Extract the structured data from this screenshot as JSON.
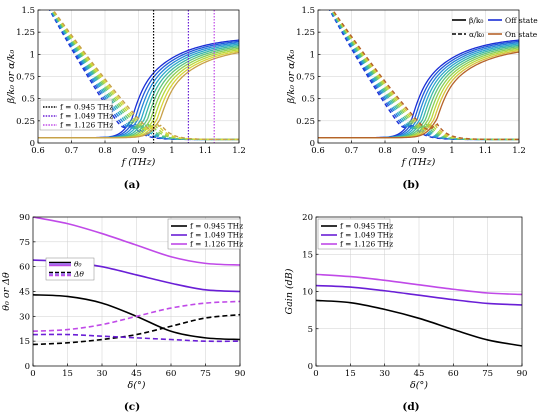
{
  "chart_data": [
    {
      "id": "a",
      "type": "line",
      "caption": "(a)",
      "xlabel": "f (THz)",
      "ylabel": "β/k₀ or α/k₀",
      "xlim": [
        0.6,
        1.2
      ],
      "ylim": [
        0,
        1.5
      ],
      "xticks": [
        "0.6",
        "0.7",
        "0.8",
        "0.9",
        "1",
        "1.1",
        "1.2"
      ],
      "yticks": [
        "0",
        "0.25",
        "0.5",
        "0.75",
        "1",
        "1.25",
        "1.5"
      ],
      "grid": true,
      "legend": {
        "position": "bottom-left",
        "entries": [
          {
            "label": "f = 0.945 THz",
            "color": "#000000"
          },
          {
            "label": "f = 1.049 THz",
            "color": "#6a1fd6"
          },
          {
            "label": "f = 1.126 THz",
            "color": "#c04ae8"
          }
        ]
      },
      "vlines": [
        0.945,
        1.049,
        1.126
      ],
      "family": {
        "count": 10,
        "beta_start": 0.88,
        "beta_end": 0.965,
        "colors": [
          "#1a2ed6",
          "#1f5ad9",
          "#2786d8",
          "#2ea8c9",
          "#3ab8a6",
          "#5fc47c",
          "#8ccf55",
          "#b7d83c",
          "#d8d43a",
          "#c8a04a"
        ]
      }
    },
    {
      "id": "b",
      "type": "line",
      "caption": "(b)",
      "xlabel": "f (THz)",
      "ylabel": "β/k₀ or α/k₀",
      "xlim": [
        0.6,
        1.2
      ],
      "ylim": [
        0,
        1.5
      ],
      "xticks": [
        "0.6",
        "0.7",
        "0.8",
        "0.9",
        "1",
        "1.1",
        "1.2"
      ],
      "yticks": [
        "0",
        "0.25",
        "0.5",
        "0.75",
        "1",
        "1.25",
        "1.5"
      ],
      "grid": true,
      "legend": {
        "position": "top-right",
        "entries": [
          {
            "label": "β/k₀",
            "style": "solid",
            "color": "#000000"
          },
          {
            "label": "α/k₀",
            "style": "dashed",
            "color": "#000000"
          },
          {
            "label": "Off state",
            "style": "solid",
            "color": "#1a2ed6"
          },
          {
            "label": "On state",
            "style": "solid",
            "color": "#b5622a"
          }
        ]
      },
      "family": {
        "count": 10,
        "beta_start": 0.88,
        "beta_end": 0.955,
        "colors": [
          "#1a2ed6",
          "#1f5ad9",
          "#2786d8",
          "#2ea8c9",
          "#3ab8a6",
          "#5fc47c",
          "#8ccf55",
          "#b7d83c",
          "#d8c03a",
          "#b5622a"
        ]
      }
    },
    {
      "id": "c",
      "type": "line",
      "caption": "(c)",
      "xlabel": "δ(°)",
      "ylabel": "θ₀ or Δθ",
      "xlim": [
        0,
        90
      ],
      "ylim": [
        0,
        90
      ],
      "xticks": [
        "0",
        "15",
        "30",
        "45",
        "60",
        "75",
        "90"
      ],
      "yticks": [
        "0",
        "15",
        "30",
        "45",
        "60",
        "75",
        "90"
      ],
      "grid": true,
      "legend": {
        "position": "top-right",
        "entries": [
          {
            "label": "f = 0.945 THz",
            "color": "#000000"
          },
          {
            "label": "f = 1.049 THz",
            "color": "#6a1fd6"
          },
          {
            "label": "f = 1.126 THz",
            "color": "#c04ae8"
          }
        ]
      },
      "legend2": {
        "position": "upper-left",
        "entries": [
          {
            "label": "θ₀",
            "style": "solid"
          },
          {
            "label": "Δθ",
            "style": "dashed"
          }
        ]
      },
      "series": [
        {
          "name": "f = 0.945 THz",
          "quantity": "θ₀",
          "color": "#000000",
          "style": "solid",
          "x": [
            0,
            15,
            30,
            45,
            60,
            75,
            90
          ],
          "y": [
            43,
            42,
            38,
            30,
            21,
            17,
            16
          ]
        },
        {
          "name": "f = 1.049 THz",
          "quantity": "θ₀",
          "color": "#6a1fd6",
          "style": "solid",
          "x": [
            0,
            15,
            30,
            45,
            60,
            75,
            90
          ],
          "y": [
            64,
            63,
            60,
            55,
            50,
            46,
            45
          ]
        },
        {
          "name": "f = 1.126 THz",
          "quantity": "θ₀",
          "color": "#c04ae8",
          "style": "solid",
          "x": [
            0,
            15,
            30,
            45,
            60,
            75,
            90
          ],
          "y": [
            90,
            86,
            80,
            73,
            66,
            62,
            61
          ]
        },
        {
          "name": "f = 0.945 THz",
          "quantity": "Δθ",
          "color": "#000000",
          "style": "dashed",
          "x": [
            0,
            15,
            30,
            45,
            60,
            75,
            90
          ],
          "y": [
            13,
            14,
            16,
            19,
            24,
            29,
            31
          ]
        },
        {
          "name": "f = 1.049 THz",
          "quantity": "Δθ",
          "color": "#6a1fd6",
          "style": "dashed",
          "x": [
            0,
            15,
            30,
            45,
            60,
            75,
            90
          ],
          "y": [
            19,
            19,
            18,
            17,
            16,
            15,
            15
          ]
        },
        {
          "name": "f = 1.126 THz",
          "quantity": "Δθ",
          "color": "#c04ae8",
          "style": "dashed",
          "x": [
            0,
            15,
            30,
            45,
            60,
            75,
            90
          ],
          "y": [
            21,
            22,
            25,
            30,
            35,
            38,
            39
          ]
        }
      ]
    },
    {
      "id": "d",
      "type": "line",
      "caption": "(d)",
      "xlabel": "δ(°)",
      "ylabel": "Gain (dB)",
      "xlim": [
        0,
        90
      ],
      "ylim": [
        0,
        20
      ],
      "xticks": [
        "0",
        "15",
        "30",
        "45",
        "60",
        "75",
        "90"
      ],
      "yticks": [
        "0",
        "5",
        "10",
        "15",
        "20"
      ],
      "grid": true,
      "legend": {
        "position": "top-left",
        "entries": [
          {
            "label": "f = 0.945 THz",
            "color": "#000000"
          },
          {
            "label": "f = 1.049 THz",
            "color": "#6a1fd6"
          },
          {
            "label": "f = 1.126 THz",
            "color": "#c04ae8"
          }
        ]
      },
      "series": [
        {
          "name": "f = 0.945 THz",
          "color": "#000000",
          "style": "solid",
          "x": [
            0,
            15,
            30,
            45,
            60,
            75,
            90
          ],
          "y": [
            8.8,
            8.5,
            7.6,
            6.4,
            4.9,
            3.5,
            2.7
          ]
        },
        {
          "name": "f = 1.049 THz",
          "color": "#6a1fd6",
          "style": "solid",
          "x": [
            0,
            15,
            30,
            45,
            60,
            75,
            90
          ],
          "y": [
            10.8,
            10.6,
            10.1,
            9.5,
            8.9,
            8.4,
            8.2
          ]
        },
        {
          "name": "f = 1.126 THz",
          "color": "#c04ae8",
          "style": "solid",
          "x": [
            0,
            15,
            30,
            45,
            60,
            75,
            90
          ],
          "y": [
            12.3,
            12.0,
            11.5,
            10.9,
            10.3,
            9.8,
            9.6
          ]
        }
      ]
    }
  ]
}
